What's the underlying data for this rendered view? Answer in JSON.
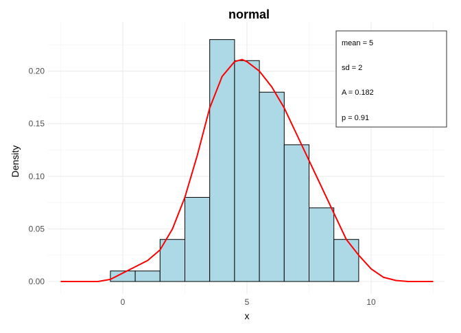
{
  "chart_data": {
    "type": "bar",
    "title": "normal",
    "xlabel": "x",
    "ylabel": "Density",
    "xlim": [
      -2.9,
      13
    ],
    "ylim": [
      -0.008,
      0.24
    ],
    "x_ticks": [
      0,
      5,
      10
    ],
    "x_tick_labels": [
      "0",
      "5",
      "10"
    ],
    "y_ticks": [
      0,
      0.05,
      0.1,
      0.15,
      0.2
    ],
    "y_tick_labels": [
      "0.00",
      "0.05",
      "0.10",
      "0.15",
      "0.20"
    ],
    "grid": true,
    "bar_fill": "#add8e6",
    "bar_stroke": "#000000",
    "bin_width": 1,
    "categories": [
      0,
      1,
      2,
      3,
      4,
      5,
      6,
      7,
      8,
      9
    ],
    "values": [
      0.01,
      0.01,
      0.04,
      0.08,
      0.23,
      0.21,
      0.18,
      0.13,
      0.07,
      0.04
    ],
    "density_curve": {
      "color": "#ff0000",
      "x": [
        -2.5,
        -1,
        -0.5,
        0,
        0.5,
        1,
        1.5,
        2,
        2.5,
        3,
        3.5,
        4,
        4.5,
        4.8,
        5,
        5.5,
        6,
        6.5,
        7,
        7.5,
        8,
        8.5,
        9,
        9.5,
        10,
        10.5,
        11,
        11.5,
        12.5
      ],
      "y": [
        0,
        0,
        0.002,
        0.008,
        0.014,
        0.02,
        0.03,
        0.05,
        0.08,
        0.12,
        0.165,
        0.195,
        0.209,
        0.211,
        0.209,
        0.2,
        0.185,
        0.165,
        0.14,
        0.115,
        0.09,
        0.065,
        0.04,
        0.025,
        0.012,
        0.004,
        0.001,
        0,
        0
      ]
    },
    "legend": {
      "placement": "top-right",
      "entries": [
        "mean = 5",
        "sd = 2",
        "A = 0.182",
        "p = 0.91"
      ]
    }
  }
}
